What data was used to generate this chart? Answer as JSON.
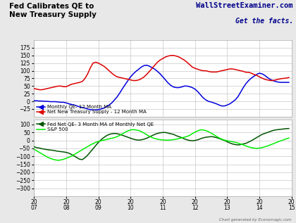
{
  "title_left": "Fed Calibrates QE to\nNew Treasury Supply",
  "title_right_line1": "WallStreetExaminer.com",
  "title_right_line2": "Get the facts.",
  "bg_color": "#e8e8e8",
  "chart_bg": "#ffffff",
  "grid_color": "#c8c8c8",
  "footer": "Chart generated by Economagic.com",
  "upper_ylim": [
    -50,
    200
  ],
  "upper_yticks": [
    -25,
    0,
    25,
    50,
    75,
    100,
    125,
    150,
    175
  ],
  "lower_ylim": [
    -350,
    130
  ],
  "lower_yticks": [
    -300,
    -250,
    -200,
    -150,
    -100,
    -50,
    0,
    50,
    100
  ],
  "blue_y": [
    2,
    2,
    1,
    1,
    0,
    0,
    -1,
    -1,
    -1,
    -2,
    -3,
    -3,
    -5,
    -8,
    -10,
    -12,
    -15,
    -18,
    -20,
    -22,
    -25,
    -27,
    -28,
    -28,
    -27,
    -25,
    -22,
    -18,
    -12,
    -5,
    5,
    15,
    28,
    42,
    55,
    68,
    80,
    90,
    98,
    105,
    112,
    117,
    118,
    115,
    110,
    105,
    98,
    90,
    80,
    70,
    60,
    52,
    47,
    45,
    45,
    47,
    50,
    50,
    48,
    45,
    40,
    32,
    22,
    12,
    5,
    0,
    -2,
    -5,
    -8,
    -12,
    -15,
    -15,
    -12,
    -8,
    -2,
    5,
    15,
    30,
    45,
    58,
    68,
    76,
    82,
    88,
    92,
    90,
    85,
    78,
    72,
    68,
    65,
    63,
    62,
    62,
    62,
    62
  ],
  "red_y": [
    42,
    40,
    38,
    38,
    40,
    42,
    44,
    46,
    48,
    50,
    50,
    48,
    48,
    52,
    56,
    58,
    60,
    62,
    65,
    75,
    90,
    110,
    125,
    128,
    125,
    120,
    115,
    108,
    100,
    92,
    85,
    80,
    78,
    76,
    74,
    72,
    70,
    68,
    68,
    70,
    74,
    80,
    88,
    98,
    108,
    118,
    128,
    135,
    140,
    145,
    148,
    150,
    150,
    148,
    145,
    140,
    135,
    128,
    120,
    112,
    108,
    105,
    102,
    100,
    100,
    98,
    96,
    96,
    96,
    98,
    100,
    102,
    104,
    106,
    106,
    104,
    102,
    100,
    98,
    95,
    95,
    92,
    88,
    85,
    80,
    76,
    72,
    70,
    68,
    68,
    70,
    72,
    74,
    75,
    76,
    78
  ],
  "dark_green_y": [
    -40,
    -45,
    -48,
    -52,
    -55,
    -58,
    -60,
    -62,
    -65,
    -68,
    -70,
    -72,
    -75,
    -80,
    -88,
    -98,
    -108,
    -118,
    -120,
    -108,
    -92,
    -72,
    -52,
    -32,
    -12,
    5,
    18,
    30,
    38,
    42,
    44,
    42,
    38,
    32,
    26,
    20,
    14,
    8,
    4,
    2,
    4,
    8,
    14,
    22,
    30,
    38,
    44,
    48,
    50,
    50,
    46,
    42,
    38,
    30,
    24,
    18,
    10,
    4,
    0,
    -2,
    0,
    4,
    10,
    16,
    20,
    22,
    24,
    22,
    18,
    12,
    6,
    0,
    -8,
    -16,
    -22,
    -26,
    -28,
    -26,
    -22,
    -18,
    -10,
    -2,
    8,
    18,
    28,
    38,
    44,
    50,
    56,
    62,
    66,
    68,
    70,
    72,
    74,
    75
  ],
  "light_green_y": [
    -55,
    -65,
    -75,
    -85,
    -95,
    -105,
    -112,
    -118,
    -122,
    -125,
    -122,
    -118,
    -112,
    -105,
    -98,
    -88,
    -78,
    -68,
    -58,
    -48,
    -38,
    -28,
    -20,
    -12,
    -6,
    -2,
    2,
    6,
    10,
    14,
    18,
    24,
    32,
    42,
    52,
    60,
    66,
    68,
    66,
    62,
    56,
    46,
    36,
    26,
    18,
    12,
    8,
    5,
    3,
    2,
    2,
    3,
    5,
    8,
    12,
    16,
    20,
    25,
    32,
    42,
    52,
    60,
    66,
    66,
    62,
    55,
    46,
    36,
    26,
    16,
    8,
    2,
    -2,
    -5,
    -8,
    -12,
    -16,
    -22,
    -28,
    -35,
    -40,
    -45,
    -48,
    -50,
    -48,
    -45,
    -40,
    -35,
    -28,
    -22,
    -15,
    -8,
    -2,
    4,
    10,
    15
  ],
  "legend_blue": "Monthly QE- 12 Month MA",
  "legend_red": "Net New Treasury Supply - 12 Month MA",
  "legend_dark_green": "Fed Net QE- 3 Month MA of Monthly Net QE",
  "legend_light_green": "S&P 500",
  "blue_color": "#0000dd",
  "red_color": "#dd0000",
  "dark_green_color": "#005500",
  "light_green_color": "#00ee00"
}
